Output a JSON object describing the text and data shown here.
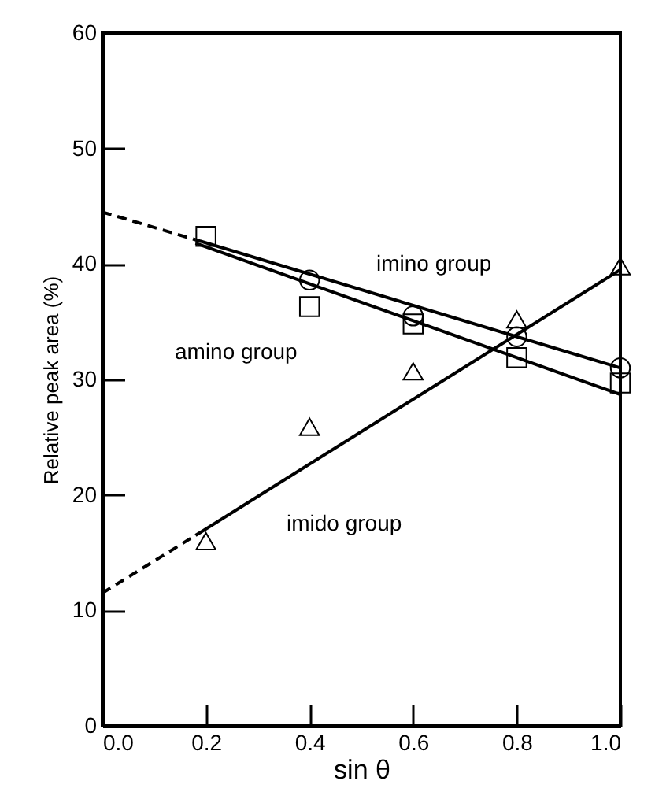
{
  "chart_data": {
    "type": "scatter",
    "xlabel": "sin  θ",
    "ylabel": "Relative peak area  (%)",
    "xlim": [
      0,
      1
    ],
    "xticks": [
      {
        "value": 0,
        "label": "0.0"
      },
      0.2,
      0.4,
      0.6,
      0.8,
      {
        "value": 1,
        "label": "1.0"
      }
    ],
    "ylim": [
      0,
      60
    ],
    "yticks": [
      0,
      10,
      20,
      30,
      40,
      50,
      60
    ],
    "grid": false,
    "series": [
      {
        "marker": "circle",
        "color": "#000000",
        "x": [
          0.4,
          0.6,
          0.8,
          1.0
        ],
        "values": [
          38.6,
          35.5,
          33.7,
          31
        ]
      },
      {
        "marker": "square",
        "color": "#000000",
        "x": [
          0.2,
          0.4,
          0.6,
          0.8,
          1.0
        ],
        "values": [
          42.4,
          36.3,
          34.8,
          31.9,
          29.7
        ]
      },
      {
        "marker": "triangle",
        "color": "#000000",
        "x": [
          0.2,
          0.4,
          0.6,
          0.8,
          1.0
        ],
        "values": [
          16,
          25.9,
          30.7,
          35.2,
          39.8
        ]
      },
      {
        "type": "line",
        "line_style": "dashed",
        "color": "#000000",
        "x": [
          0,
          0.18
        ],
        "values": [
          44.5,
          42.1
        ]
      },
      {
        "type": "line",
        "line_style": "solid",
        "color": "#000000",
        "x": [
          0.18,
          1.0
        ],
        "values": [
          42.1,
          31
        ]
      },
      {
        "type": "line",
        "line_style": "solid",
        "color": "#000000",
        "x": [
          0.18,
          1.0
        ],
        "values": [
          41.8,
          28.7
        ]
      },
      {
        "type": "line",
        "line_style": "dashed",
        "color": "#000000",
        "x": [
          0,
          0.18
        ],
        "values": [
          11.5,
          16.5
        ]
      },
      {
        "type": "line",
        "line_style": "solid",
        "color": "#000000",
        "x": [
          0.18,
          1.0
        ],
        "values": [
          16.5,
          39.5
        ]
      }
    ],
    "annotations": [
      "imino group",
      "amino group",
      "imido group"
    ]
  }
}
